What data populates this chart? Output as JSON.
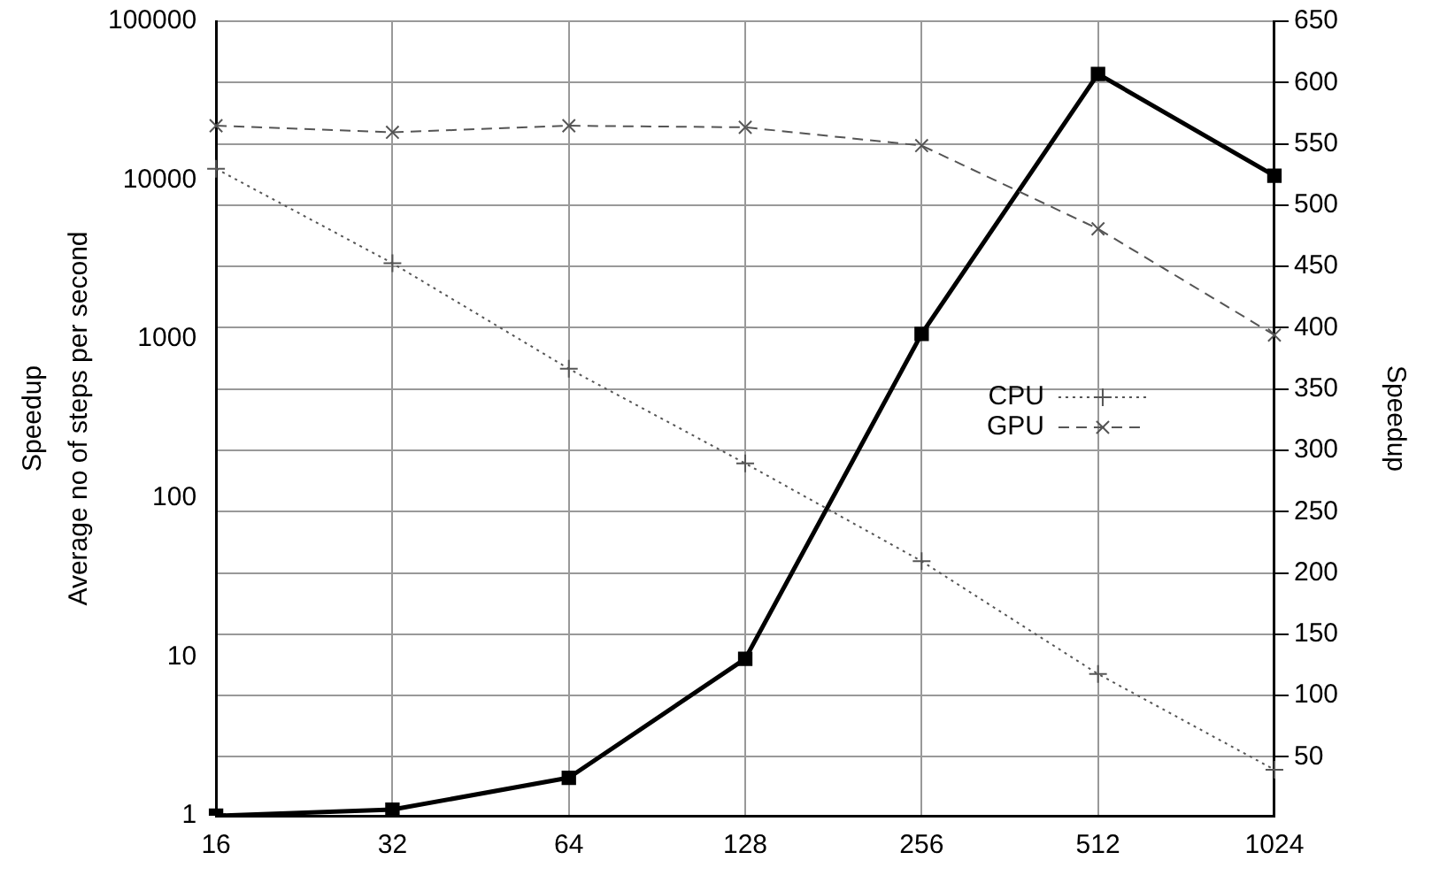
{
  "chart_data": {
    "type": "line",
    "categories": [
      "16",
      "32",
      "64",
      "128",
      "256",
      "512",
      "1024"
    ],
    "ylabel": "Average no of steps per second",
    "y2label": "Speedup",
    "annotations": [
      "Speedup"
    ],
    "log": "y",
    "ylim": [
      1,
      100000
    ],
    "yticks": [
      1,
      10,
      100,
      1000,
      10000,
      100000
    ],
    "y2lim": [
      2,
      650
    ],
    "y2ticks": [
      50,
      100,
      150,
      200,
      250,
      300,
      350,
      400,
      450,
      500,
      550,
      600,
      650
    ],
    "grid": true,
    "legend": "right",
    "series": [
      {
        "name": "CPU",
        "color": "#555555",
        "marker": "cross",
        "line_style": "dotted",
        "values": [
          11800,
          3000,
          650,
          165,
          40,
          7.8,
          1.95
        ]
      },
      {
        "name": "GPU",
        "color": "#555555",
        "marker": "cross-rotated",
        "line_style": "dashed",
        "values": [
          22000,
          20000,
          22000,
          21500,
          16500,
          4940,
          1060
        ]
      },
      {
        "color": "#000000",
        "marker": "square",
        "line_style": "solid",
        "axis": "y2",
        "values": [
          2,
          7,
          33,
          130,
          395,
          607,
          524
        ]
      }
    ]
  }
}
